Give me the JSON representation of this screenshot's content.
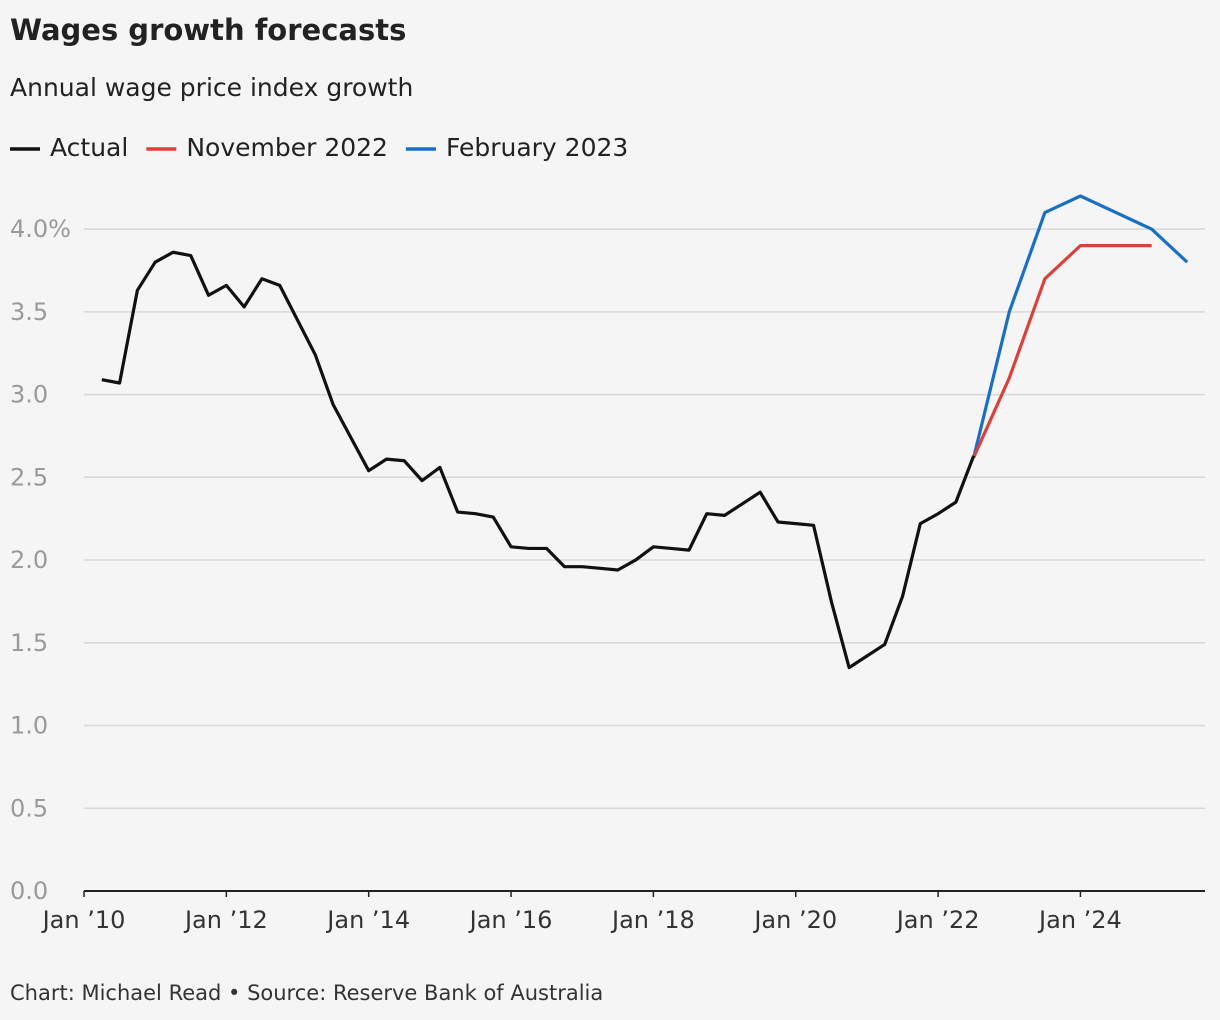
{
  "chart_data": {
    "type": "line",
    "title": "Wages growth forecasts",
    "subtitle": "Annual wage price index growth",
    "source": "Chart: Michael Read • Source: Reserve Bank of Australia",
    "xlim": [
      "2010-01",
      "2025-10"
    ],
    "xticks": [
      {
        "value": "2010-01",
        "label": "Jan ’10"
      },
      {
        "value": "2012-01",
        "label": "Jan ’12"
      },
      {
        "value": "2014-01",
        "label": "Jan ’14"
      },
      {
        "value": "2016-01",
        "label": "Jan ’16"
      },
      {
        "value": "2018-01",
        "label": "Jan ’18"
      },
      {
        "value": "2020-01",
        "label": "Jan ’20"
      },
      {
        "value": "2022-01",
        "label": "Jan ’22"
      },
      {
        "value": "2024-01",
        "label": "Jan ’24"
      }
    ],
    "ylim": [
      0,
      4.2
    ],
    "yticks": [
      {
        "value": 0,
        "label": "0.0"
      },
      0.5,
      {
        "value": 1,
        "label": "1.0"
      },
      1.5,
      {
        "value": 2,
        "label": "2.0"
      },
      2.5,
      {
        "value": 3,
        "label": "3.0"
      },
      3.5,
      {
        "value": 4,
        "label": "4.0%"
      }
    ],
    "grid": true,
    "series": [
      {
        "name": "Actual",
        "color": "#111111",
        "x": [
          "2010-04",
          "2010-07",
          "2010-10",
          "2011-01",
          "2011-04",
          "2011-07",
          "2011-10",
          "2012-01",
          "2012-04",
          "2012-07",
          "2012-10",
          "2013-01",
          "2013-04",
          "2013-07",
          "2013-10",
          "2014-01",
          "2014-04",
          "2014-07",
          "2014-10",
          "2015-01",
          "2015-04",
          "2015-07",
          "2015-10",
          "2016-01",
          "2016-04",
          "2016-07",
          "2016-10",
          "2017-01",
          "2017-04",
          "2017-07",
          "2017-10",
          "2018-01",
          "2018-04",
          "2018-07",
          "2018-10",
          "2019-01",
          "2019-04",
          "2019-07",
          "2019-10",
          "2020-01",
          "2020-04",
          "2020-07",
          "2020-10",
          "2021-01",
          "2021-04",
          "2021-07",
          "2021-10",
          "2022-01",
          "2022-04",
          "2022-07"
        ],
        "values": [
          3.09,
          3.07,
          3.63,
          3.8,
          3.86,
          3.84,
          3.6,
          3.66,
          3.53,
          3.7,
          3.66,
          3.45,
          3.24,
          2.94,
          2.74,
          2.54,
          2.61,
          2.6,
          2.48,
          2.56,
          2.29,
          2.28,
          2.26,
          2.08,
          2.07,
          2.07,
          1.96,
          1.96,
          1.95,
          1.94,
          2.0,
          2.08,
          2.07,
          2.06,
          2.28,
          2.27,
          2.34,
          2.41,
          2.23,
          2.22,
          2.21,
          1.75,
          1.35,
          1.42,
          1.49,
          1.78,
          2.22,
          2.28,
          2.35,
          2.63
        ]
      },
      {
        "name": "November 2022",
        "color": "#d9413b",
        "x": [
          "2022-07",
          "2023-01",
          "2023-07",
          "2024-01",
          "2024-07",
          "2025-01"
        ],
        "values": [
          2.62,
          3.1,
          3.7,
          3.9,
          3.9,
          3.9
        ]
      },
      {
        "name": "February 2023",
        "color": "#1a6fc4",
        "x": [
          "2022-07",
          "2023-01",
          "2023-07",
          "2024-01",
          "2024-07",
          "2025-01",
          "2025-07"
        ],
        "values": [
          2.62,
          3.5,
          4.1,
          4.2,
          4.1,
          4.0,
          3.8
        ]
      }
    ]
  }
}
